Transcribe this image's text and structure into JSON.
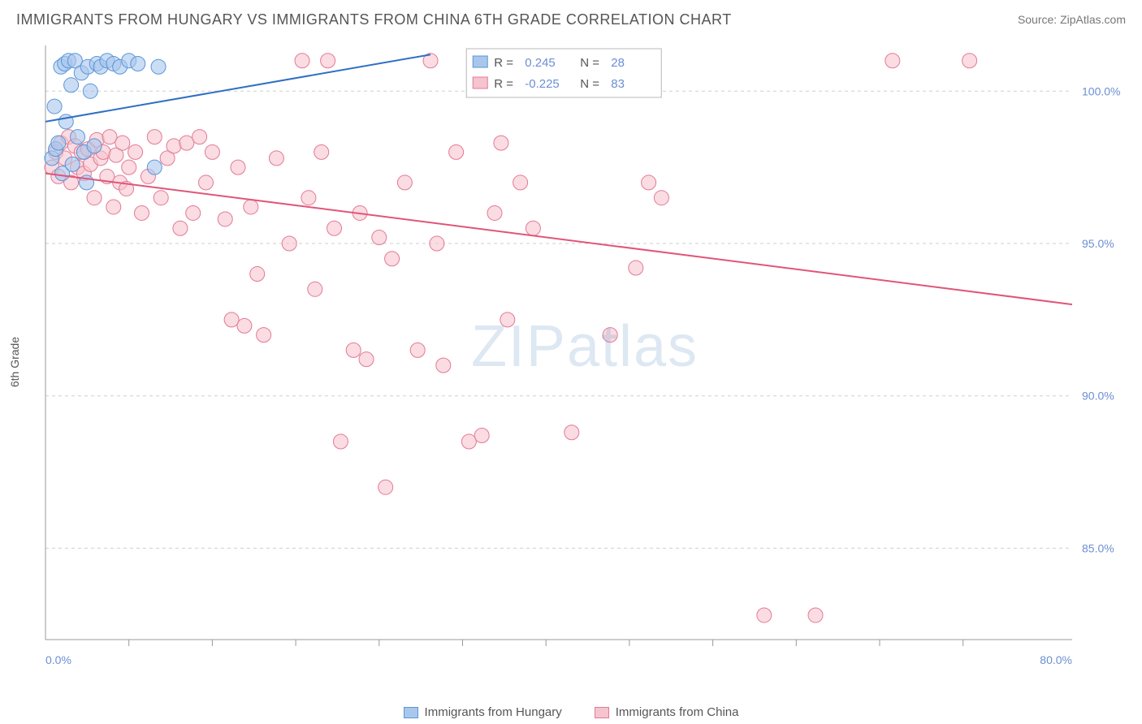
{
  "header": {
    "title": "IMMIGRANTS FROM HUNGARY VS IMMIGRANTS FROM CHINA 6TH GRADE CORRELATION CHART",
    "source_prefix": "Source: ",
    "source_name": "ZipAtlas.com"
  },
  "axes": {
    "y_label": "6th Grade",
    "x_min": 0.0,
    "x_max": 80.0,
    "y_min": 82.0,
    "y_max": 101.5,
    "x_ticks": [
      0.0,
      80.0
    ],
    "x_tick_labels": [
      "0.0%",
      "80.0%"
    ],
    "x_minor_ticks": [
      6.5,
      13,
      19.5,
      26,
      32.5,
      39,
      45.5,
      52,
      58.5,
      65,
      71.5
    ],
    "y_ticks": [
      85.0,
      90.0,
      95.0,
      100.0
    ],
    "y_tick_labels": [
      "85.0%",
      "90.0%",
      "95.0%",
      "100.0%"
    ],
    "tick_label_color": "#6b8fd4",
    "tick_label_fontsize": 14,
    "grid_color": "#cfcfcf",
    "axis_line_color": "#999999",
    "background_color": "#ffffff"
  },
  "watermark": {
    "text_bold": "ZIP",
    "text_light": "atlas"
  },
  "legend_box": {
    "border_color": "#b8b8b8",
    "bg_color": "#ffffff",
    "text_color": "#555555",
    "value_color": "#6b8fd4",
    "rows": [
      {
        "swatch_fill": "#a9c7ec",
        "swatch_stroke": "#5a96d6",
        "r_label": "R =",
        "r_value": "0.245",
        "n_label": "N =",
        "n_value": "28"
      },
      {
        "swatch_fill": "#f6c4cf",
        "swatch_stroke": "#e27a94",
        "r_label": "R =",
        "r_value": "-0.225",
        "n_label": "N =",
        "n_value": "83"
      }
    ]
  },
  "bottom_legend": [
    {
      "swatch_fill": "#a9c7ec",
      "swatch_stroke": "#5a96d6",
      "label": "Immigrants from Hungary"
    },
    {
      "swatch_fill": "#f6c4cf",
      "swatch_stroke": "#e27a94",
      "label": "Immigrants from China"
    }
  ],
  "series": {
    "marker_radius": 9,
    "marker_opacity": 0.6,
    "hungary": {
      "fill": "#a9c7ec",
      "stroke": "#5a96d6",
      "trend": {
        "x1": 0.0,
        "y1": 99.0,
        "x2": 30.0,
        "y2": 101.2,
        "color": "#2f6fc4",
        "width": 2
      },
      "points": [
        [
          0.5,
          97.8
        ],
        [
          0.8,
          98.1
        ],
        [
          1.0,
          98.3
        ],
        [
          1.2,
          100.8
        ],
        [
          1.5,
          100.9
        ],
        [
          1.8,
          101.0
        ],
        [
          2.0,
          100.2
        ],
        [
          2.3,
          101.0
        ],
        [
          2.5,
          98.5
        ],
        [
          2.8,
          100.6
        ],
        [
          3.0,
          98.0
        ],
        [
          3.3,
          100.8
        ],
        [
          3.5,
          100.0
        ],
        [
          3.8,
          98.2
        ],
        [
          4.0,
          100.9
        ],
        [
          4.3,
          100.8
        ],
        [
          4.8,
          101.0
        ],
        [
          5.3,
          100.9
        ],
        [
          5.8,
          100.8
        ],
        [
          6.5,
          101.0
        ],
        [
          7.2,
          100.9
        ],
        [
          8.5,
          97.5
        ],
        [
          8.8,
          100.8
        ],
        [
          3.2,
          97.0
        ],
        [
          1.3,
          97.3
        ],
        [
          2.1,
          97.6
        ],
        [
          0.7,
          99.5
        ],
        [
          1.6,
          99.0
        ]
      ]
    },
    "china": {
      "fill": "#f6c4cf",
      "stroke": "#e27a94",
      "trend": {
        "x1": 0.0,
        "y1": 97.3,
        "x2": 80.0,
        "y2": 93.0,
        "color": "#e0557a",
        "width": 2
      },
      "points": [
        [
          0.5,
          97.5
        ],
        [
          0.8,
          98.0
        ],
        [
          1.0,
          97.2
        ],
        [
          1.2,
          98.3
        ],
        [
          1.5,
          97.8
        ],
        [
          1.8,
          98.5
        ],
        [
          2.0,
          97.0
        ],
        [
          2.3,
          98.2
        ],
        [
          2.5,
          97.5
        ],
        [
          2.8,
          98.0
        ],
        [
          3.0,
          97.3
        ],
        [
          3.3,
          98.1
        ],
        [
          3.5,
          97.6
        ],
        [
          3.8,
          96.5
        ],
        [
          4.0,
          98.4
        ],
        [
          4.3,
          97.8
        ],
        [
          4.5,
          98.0
        ],
        [
          4.8,
          97.2
        ],
        [
          5.0,
          98.5
        ],
        [
          5.3,
          96.2
        ],
        [
          5.5,
          97.9
        ],
        [
          5.8,
          97.0
        ],
        [
          6.0,
          98.3
        ],
        [
          6.3,
          96.8
        ],
        [
          6.5,
          97.5
        ],
        [
          7.0,
          98.0
        ],
        [
          7.5,
          96.0
        ],
        [
          8.0,
          97.2
        ],
        [
          8.5,
          98.5
        ],
        [
          9.0,
          96.5
        ],
        [
          9.5,
          97.8
        ],
        [
          10.0,
          98.2
        ],
        [
          10.5,
          95.5
        ],
        [
          11.0,
          98.3
        ],
        [
          11.5,
          96.0
        ],
        [
          12.0,
          98.5
        ],
        [
          12.5,
          97.0
        ],
        [
          13.0,
          98.0
        ],
        [
          14.0,
          95.8
        ],
        [
          14.5,
          92.5
        ],
        [
          15.0,
          97.5
        ],
        [
          15.5,
          92.3
        ],
        [
          16.0,
          96.2
        ],
        [
          16.5,
          94.0
        ],
        [
          17.0,
          92.0
        ],
        [
          18.0,
          97.8
        ],
        [
          19.0,
          95.0
        ],
        [
          20.0,
          101.0
        ],
        [
          20.5,
          96.5
        ],
        [
          21.0,
          93.5
        ],
        [
          21.5,
          98.0
        ],
        [
          22.5,
          95.5
        ],
        [
          23.0,
          88.5
        ],
        [
          24.0,
          91.5
        ],
        [
          24.5,
          96.0
        ],
        [
          25.0,
          91.2
        ],
        [
          26.0,
          95.2
        ],
        [
          26.5,
          87.0
        ],
        [
          27.0,
          94.5
        ],
        [
          28.0,
          97.0
        ],
        [
          29.0,
          91.5
        ],
        [
          30.0,
          101.0
        ],
        [
          30.5,
          95.0
        ],
        [
          31.0,
          91.0
        ],
        [
          32.0,
          98.0
        ],
        [
          33.0,
          88.5
        ],
        [
          34.0,
          88.7
        ],
        [
          35.0,
          96.0
        ],
        [
          35.5,
          98.3
        ],
        [
          36.0,
          92.5
        ],
        [
          37.0,
          97.0
        ],
        [
          38.0,
          95.5
        ],
        [
          39.5,
          101.0
        ],
        [
          41.0,
          88.8
        ],
        [
          44.0,
          92.0
        ],
        [
          46.0,
          94.2
        ],
        [
          48.0,
          96.5
        ],
        [
          56.0,
          82.8
        ],
        [
          60.0,
          82.8
        ],
        [
          66.0,
          101.0
        ],
        [
          72.0,
          101.0
        ],
        [
          47.0,
          97.0
        ],
        [
          22.0,
          101.0
        ]
      ]
    }
  }
}
